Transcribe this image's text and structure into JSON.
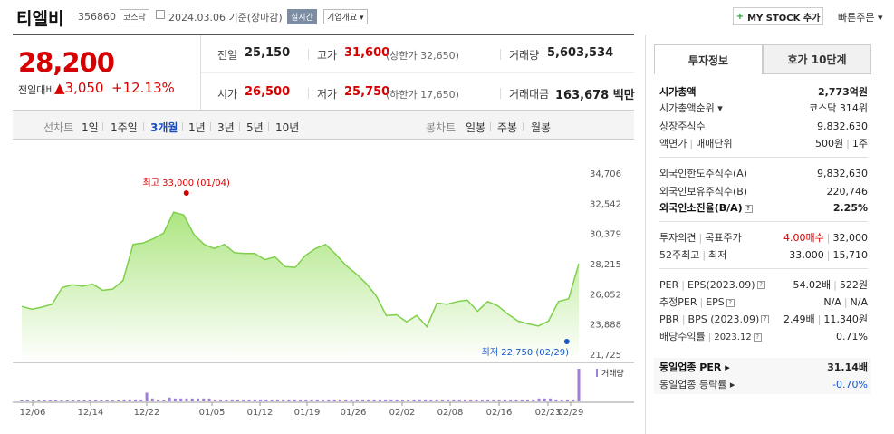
{
  "header": {
    "name": "티엘비",
    "code": "356860",
    "market": "코스닥",
    "date": "2024.03.06  기준(장마감)",
    "realtime": "실시간",
    "company_info": "기업개요",
    "mystock_button": "MY STOCK 추가",
    "quick_order": "빠른주문"
  },
  "price": {
    "current": "28,200",
    "change_label": "전일대비",
    "change_amount": "▲3,050",
    "change_rate": "+12.13%"
  },
  "quote": {
    "prev_label": "전일",
    "prev_value": "25,150",
    "high_label": "고가",
    "high_value": "31,600",
    "upper_limit": "(상한가 32,650)",
    "volume_label": "거래량",
    "volume_value": "5,603,534",
    "open_label": "시가",
    "open_value": "26,500",
    "low_label": "저가",
    "low_value": "25,750",
    "lower_limit": "(하한가 17,650)",
    "amount_label": "거래대금",
    "amount_value": "163,678 백만"
  },
  "period": {
    "line_label": "선차트",
    "items": [
      "1일",
      "1주일",
      "3개월",
      "1년",
      "3년",
      "5년",
      "10년"
    ],
    "selected": "3개월",
    "candle_label": "봉차트",
    "candle_items": [
      "일봉",
      "주봉",
      "월봉"
    ]
  },
  "chart_data": {
    "type": "area",
    "y_ticks": [
      "34,706",
      "32,542",
      "30,379",
      "28,215",
      "26,052",
      "23,888",
      "21,725"
    ],
    "ylim": [
      21725,
      34706
    ],
    "x_ticks": [
      "12/06",
      "12/14",
      "12/22",
      "01/05",
      "01/12",
      "01/19",
      "01/26",
      "02/02",
      "02/08",
      "02/16",
      "02/23",
      "02/29"
    ],
    "values": [
      25150,
      24950,
      25100,
      25300,
      26500,
      26700,
      26600,
      26750,
      26300,
      26400,
      27000,
      29600,
      29700,
      30000,
      30400,
      31900,
      31700,
      30300,
      29600,
      29300,
      29600,
      29000,
      28950,
      28950,
      28500,
      28700,
      28000,
      27950,
      28800,
      29300,
      29600,
      28900,
      28100,
      27500,
      26800,
      25900,
      24500,
      24550,
      24050,
      24500,
      23700,
      25400,
      25300,
      25500,
      25600,
      24800,
      25500,
      25200,
      24600,
      24100,
      23900,
      23750,
      24100,
      25500,
      25700,
      28200
    ],
    "high_label": "최고 33,000 (01/04)",
    "low_label": "최저 22,750 (02/29)",
    "volume_label": "거래량",
    "volumes": [
      1,
      1,
      1,
      1,
      1,
      1,
      1,
      1,
      1,
      1,
      1,
      1,
      2,
      2,
      2,
      2,
      2,
      2,
      1,
      1,
      1,
      1,
      1,
      1,
      1,
      1,
      1,
      1,
      1,
      1,
      1,
      1,
      1,
      1,
      1,
      1,
      1,
      1,
      1,
      1,
      1,
      1,
      1,
      1,
      1,
      1,
      1,
      1,
      1,
      1,
      1,
      1,
      1,
      1,
      1,
      1
    ],
    "volume_bars": [
      1,
      1,
      1,
      1,
      1,
      1,
      1,
      1,
      1,
      1,
      1,
      1,
      1,
      1,
      1,
      1,
      1,
      1,
      2,
      2,
      2,
      2,
      9,
      3,
      2,
      1,
      4,
      3,
      3,
      3,
      3,
      3,
      3,
      3,
      2,
      2,
      2,
      2,
      2,
      2,
      2,
      2,
      2,
      2,
      2,
      2,
      2,
      2,
      2,
      2,
      2,
      2,
      2,
      2,
      2,
      2,
      2,
      2,
      2,
      2,
      2,
      2,
      2,
      2,
      2,
      2,
      2,
      2,
      2,
      2,
      2,
      2,
      2,
      2,
      2,
      2,
      2,
      2,
      2,
      2,
      2,
      2,
      2,
      2,
      2,
      2,
      2,
      2,
      2,
      2,
      2,
      3,
      3,
      3,
      2,
      2,
      2,
      2,
      34
    ],
    "colors": {
      "line": "#7ed04b",
      "fill_top": "#a8e47a",
      "high": "#d60000",
      "low": "#1a57c9",
      "volume": "#a17fd6"
    }
  },
  "panel": {
    "tab_info": "투자정보",
    "tab_orderbook": "호가 10단계",
    "market_cap_label": "시가총액",
    "market_cap_value": "2,773억원",
    "cap_rank_label": "시가총액순위",
    "cap_rank_value": "코스닥 314위",
    "shares_label": "상장주식수",
    "shares_value": "9,832,630",
    "par_label": "액면가",
    "unit_label": "매매단위",
    "par_value": "500원",
    "unit_value": "1주",
    "foreign_limit_label": "외국인한도주식수(A)",
    "foreign_limit_value": "9,832,630",
    "foreign_hold_label": "외국인보유주식수(B)",
    "foreign_hold_value": "220,746",
    "foreign_ratio_label": "외국인소진율(B/A)",
    "foreign_ratio_value": "2.25%",
    "opinion_label": "투자의견",
    "target_label": "목표주가",
    "opinion_value": "4.00매수",
    "target_value": "32,000",
    "w52_high_label": "52주최고",
    "w52_low_label": "최저",
    "w52_high_value": "33,000",
    "w52_low_value": "15,710",
    "per_label": "PER",
    "eps_label": "EPS(2023.09)",
    "per_value": "54.02배",
    "eps_value": "522원",
    "est_per_label": "추정PER",
    "est_eps_label": "EPS",
    "est_per_value": "N/A",
    "est_eps_value": "N/A",
    "pbr_label": "PBR",
    "bps_label": "BPS (2023.09)",
    "pbr_value": "2.49배",
    "bps_value": "11,340원",
    "div_label": "배당수익률",
    "div_date": "2023.12",
    "div_value": "0.71%",
    "sector_per_label": "동일업종 PER",
    "sector_per_value": "31.14배",
    "sector_rate_label": "동일업종 등락률",
    "sector_rate_value": "-0.70%"
  }
}
